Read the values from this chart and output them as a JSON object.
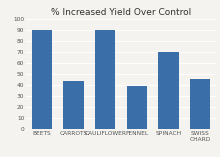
{
  "categories": [
    "BEETS",
    "CARROTS",
    "CAULIFLOWER",
    "FENNEL",
    "SPINACH",
    "SWISS CHARD"
  ],
  "values": [
    90,
    43,
    90,
    39,
    70,
    45
  ],
  "bar_color": "#3A6EA8",
  "title": "% Increased Yield Over Control",
  "title_fontsize": 6.5,
  "ylim": [
    0,
    100
  ],
  "yticks": [
    0,
    10,
    20,
    30,
    40,
    50,
    60,
    70,
    80,
    90,
    100
  ],
  "background_color": "#F5F3EF",
  "plot_bg_color": "#F5F3EF",
  "grid_color": "#FFFFFF",
  "tick_fontsize": 4.2,
  "bar_width": 0.65,
  "title_color": "#333333",
  "tick_color": "#555555"
}
